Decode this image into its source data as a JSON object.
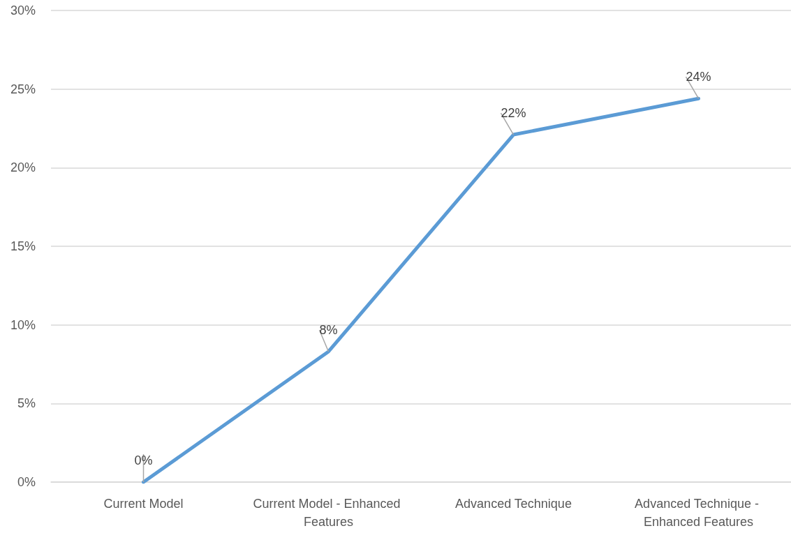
{
  "chart_data": {
    "type": "line",
    "categories": [
      "Current Model",
      "Current Model - Enhanced Features",
      "Advanced Technique",
      "Advanced Technique - Enhanced Features"
    ],
    "series": [
      {
        "color": "#5b9bd5",
        "values": [
          0,
          8.3,
          22.1,
          24.4
        ],
        "value_labels": [
          "0%",
          "8%",
          "22%",
          "24%"
        ]
      }
    ],
    "ylim": [
      0,
      30
    ],
    "yticks": [
      {
        "value": 0,
        "label": "0%"
      },
      {
        "value": 5,
        "label": "5%"
      },
      {
        "value": 10,
        "label": "10%"
      },
      {
        "value": 15,
        "label": "15%"
      },
      {
        "value": 20,
        "label": "20%"
      },
      {
        "value": 25,
        "label": "25%"
      },
      {
        "value": 30,
        "label": "30%"
      }
    ],
    "grid": "y",
    "marker": "none",
    "line_style": "solid"
  }
}
